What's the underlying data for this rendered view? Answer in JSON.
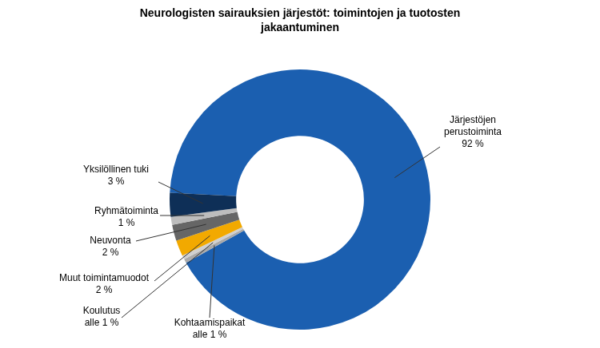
{
  "chart_data": {
    "type": "doughnut",
    "title": "Neurologisten sairauksien järjestöt: toimintojen ja tuotosten jakaantuminen",
    "categories": [
      "Järjestöjen perustoiminta",
      "Kohtaamispaikat",
      "Koulutus",
      "Muut toimintamuodot",
      "Neuvonta",
      "Ryhmätoiminta",
      "Yksilöllinen tuki"
    ],
    "values": [
      92,
      0.5,
      0.5,
      2,
      2,
      1,
      3
    ],
    "value_labels": [
      "92 %",
      "alle 1 %",
      "alle 1 %",
      "2 %",
      "2 %",
      "1 %",
      "3 %"
    ],
    "colors": [
      "#1b5fb0",
      "#a9a9a9",
      "#d0d0d0",
      "#f2a900",
      "#666666",
      "#bdbdbd",
      "#0e2f57"
    ],
    "data_labels": true
  }
}
